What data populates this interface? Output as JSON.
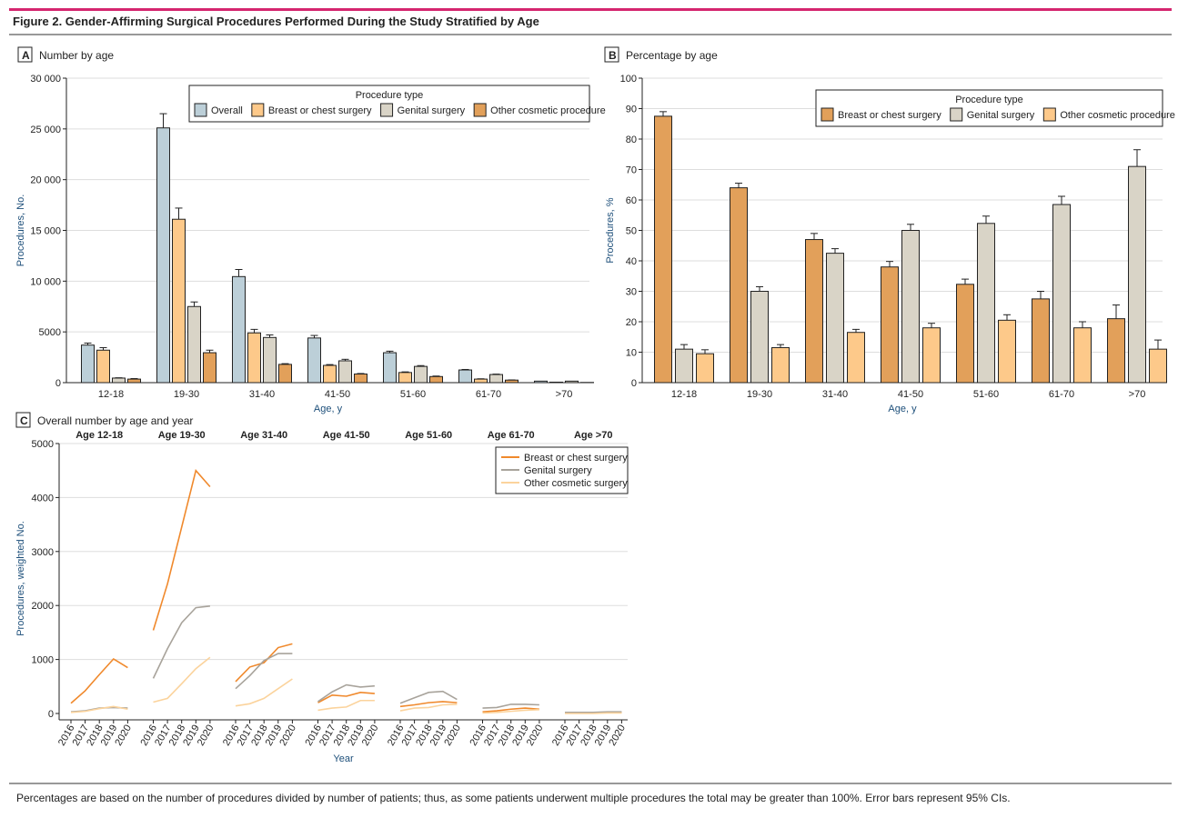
{
  "figure_title": "Figure 2. Gender-Affirming Surgical Procedures Performed During the Study Stratified by Age",
  "footnote": "Percentages are based on the number of procedures divided by number of patients; thus, as some patients underwent multiple procedures the total may be greater than 100%. Error bars represent 95% CIs.",
  "colors": {
    "accent_rule": "#d5266f",
    "overall": "#bccfd8",
    "breast_light": "#fdc98a",
    "genital": "#d9d4c7",
    "other_dark": "#e2a05a",
    "line_breast": "#f0892c",
    "line_genital": "#a8a39b",
    "line_other": "#fbd39c"
  },
  "chart_data": [
    {
      "panel": "A",
      "title": "Number by age",
      "type": "bar",
      "xlabel": "Age, y",
      "ylabel": "Procedures, No.",
      "ylim": [
        0,
        30000
      ],
      "yticks": [
        "0",
        "5000",
        "10 000",
        "15 000",
        "20 000",
        "25 000",
        "30 000"
      ],
      "legend_title": "Procedure type",
      "legend_position": "top-right",
      "categories": [
        "12-18",
        "19-30",
        "31-40",
        "41-50",
        "51-60",
        "61-70",
        ">70"
      ],
      "series": [
        {
          "name": "Overall",
          "color": "#bccfd8",
          "values": [
            3700,
            25100,
            10450,
            4400,
            2950,
            1250,
            150
          ],
          "ci_upper": [
            3900,
            26500,
            11150,
            4650,
            3100,
            1300,
            170
          ]
        },
        {
          "name": "Breast or chest surgery",
          "color": "#fdc98a",
          "values": [
            3200,
            16100,
            4900,
            1700,
            1000,
            350,
            50
          ],
          "ci_upper": [
            3450,
            17200,
            5250,
            1780,
            1060,
            380,
            60
          ]
        },
        {
          "name": "Genital surgery",
          "color": "#d9d4c7",
          "values": [
            450,
            7500,
            4450,
            2150,
            1600,
            800,
            150
          ],
          "ci_upper": [
            480,
            7950,
            4700,
            2300,
            1680,
            840,
            170
          ]
        },
        {
          "name": "Other cosmetic procedure",
          "color": "#e2a05a",
          "values": [
            350,
            2950,
            1800,
            850,
            600,
            250,
            20
          ],
          "ci_upper": [
            400,
            3200,
            1870,
            900,
            650,
            270,
            30
          ]
        }
      ]
    },
    {
      "panel": "B",
      "title": "Percentage by age",
      "type": "bar",
      "xlabel": "Age, y",
      "ylabel": "Procedures, %",
      "ylim": [
        0,
        100
      ],
      "yticks": [
        "0",
        "10",
        "20",
        "30",
        "40",
        "50",
        "60",
        "70",
        "80",
        "90",
        "100"
      ],
      "legend_title": "Procedure type",
      "legend_position": "top-right",
      "categories": [
        "12-18",
        "19-30",
        "31-40",
        "41-50",
        "51-60",
        "61-70",
        ">70"
      ],
      "series": [
        {
          "name": "Breast or chest surgery",
          "color": "#e2a05a",
          "values": [
            87.5,
            64,
            47,
            38,
            32.3,
            27.5,
            21
          ],
          "ci_upper": [
            89,
            65.5,
            49,
            39.8,
            34,
            30,
            25.5
          ]
        },
        {
          "name": "Genital surgery",
          "color": "#d9d4c7",
          "values": [
            11,
            30,
            42.5,
            50,
            52.3,
            58.5,
            71
          ],
          "ci_upper": [
            12.5,
            31.5,
            44,
            52,
            54.7,
            61.2,
            76.5
          ]
        },
        {
          "name": "Other cosmetic procedure",
          "color": "#fdc98a",
          "values": [
            9.5,
            11.5,
            16.5,
            18,
            20.5,
            18,
            11
          ],
          "ci_upper": [
            10.8,
            12.5,
            17.5,
            19.5,
            22.3,
            20,
            14
          ]
        }
      ]
    },
    {
      "panel": "C",
      "title": "Overall number by age and year",
      "type": "line",
      "xlabel": "Year",
      "ylabel": "Procedures, weighted No.",
      "ylim": [
        0,
        5000
      ],
      "yticks": [
        "0",
        "1000",
        "2000",
        "3000",
        "4000",
        "5000"
      ],
      "legend_position": "top-right",
      "groups": [
        "Age 12-18",
        "Age 19-30",
        "Age 31-40",
        "Age 41-50",
        "Age 51-60",
        "Age 61-70",
        "Age >70"
      ],
      "x": [
        "2016",
        "2017",
        "2018",
        "2019",
        "2020"
      ],
      "series": [
        {
          "name": "Breast or chest surgery",
          "color": "#f0892c",
          "values": [
            [
              190,
              420,
              720,
              1010,
              850
            ],
            [
              1540,
              2400,
              3450,
              4500,
              4200
            ],
            [
              590,
              860,
              940,
              1220,
              1290
            ],
            [
              200,
              340,
              320,
              390,
              370
            ],
            [
              130,
              160,
              200,
              220,
              200
            ],
            [
              30,
              50,
              80,
              100,
              80
            ],
            [
              10,
              10,
              10,
              20,
              20
            ]
          ]
        },
        {
          "name": "Genital surgery",
          "color": "#a8a39b",
          "values": [
            [
              30,
              50,
              100,
              110,
              100
            ],
            [
              650,
              1200,
              1680,
              1960,
              1990
            ],
            [
              460,
              700,
              980,
              1110,
              1110
            ],
            [
              220,
              400,
              530,
              490,
              510
            ],
            [
              190,
              290,
              390,
              410,
              260
            ],
            [
              100,
              110,
              170,
              170,
              160
            ],
            [
              20,
              20,
              20,
              30,
              30
            ]
          ]
        },
        {
          "name": "Other cosmetic surgery",
          "color": "#fbd39c",
          "values": [
            [
              20,
              40,
              90,
              130,
              80
            ],
            [
              210,
              280,
              550,
              830,
              1040
            ],
            [
              140,
              180,
              280,
              460,
              640
            ],
            [
              60,
              100,
              120,
              240,
              240
            ],
            [
              50,
              100,
              110,
              160,
              170
            ],
            [
              10,
              20,
              40,
              60,
              70
            ],
            [
              0,
              0,
              0,
              10,
              10
            ]
          ]
        }
      ]
    }
  ]
}
